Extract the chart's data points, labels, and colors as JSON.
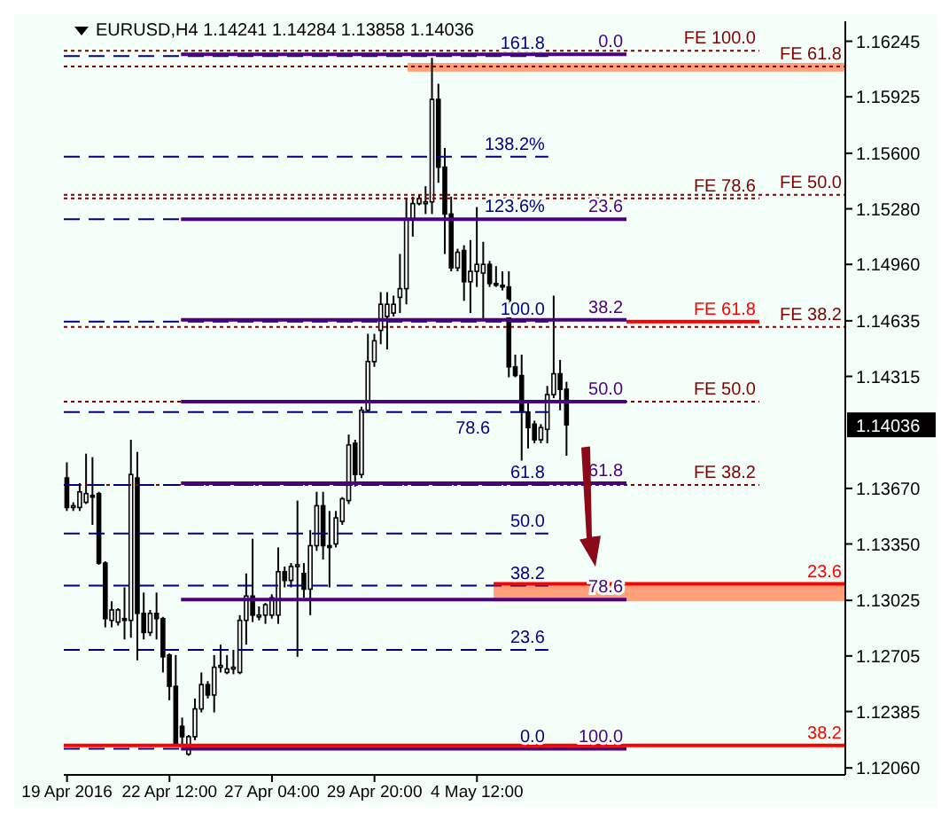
{
  "chart_data": {
    "type": "candlestick",
    "title": "EURUSD,H4  1.14241 1.14284 1.13858 1.14036",
    "categories": [
      "19 Apr 2016",
      null,
      null,
      null,
      null,
      null,
      null,
      null,
      null,
      null,
      null,
      null,
      null,
      null,
      null,
      null,
      "22 Apr 12:00",
      null,
      null,
      null,
      null,
      null,
      null,
      null,
      null,
      null,
      null,
      null,
      null,
      null,
      null,
      null,
      "27 Apr 04:00",
      null,
      null,
      null,
      null,
      null,
      null,
      null,
      null,
      null,
      null,
      null,
      null,
      null,
      null,
      null,
      "29 Apr 20:00",
      null,
      null,
      null,
      null,
      null,
      null,
      null,
      null,
      null,
      null,
      null,
      null,
      null,
      null,
      null,
      "4 May 12:00",
      null,
      null,
      null,
      null,
      null,
      null,
      null,
      null,
      null,
      null,
      null,
      null,
      null,
      null,
      null,
      null,
      null,
      null,
      null,
      null,
      null,
      null,
      null,
      null,
      null,
      null,
      null,
      null,
      null,
      null,
      null,
      null,
      null,
      null,
      null,
      null,
      null,
      null,
      null,
      null,
      null,
      null,
      null,
      null,
      null,
      null,
      null,
      null,
      null,
      null,
      null,
      null,
      null,
      null,
      null,
      null,
      null
    ],
    "ohlc": [
      [
        1.1373,
        1.1382,
        1.1354,
        1.1356
      ],
      [
        1.1356,
        1.1359,
        1.1354,
        1.1357
      ],
      [
        1.1356,
        1.137,
        1.1354,
        1.1365
      ],
      [
        1.1359,
        1.1387,
        1.1358,
        1.1364
      ],
      [
        1.1363,
        1.1385,
        1.1346,
        1.1362
      ],
      [
        1.1364,
        1.1365,
        1.1323,
        1.1324
      ],
      [
        1.1324,
        1.1325,
        1.1287,
        1.1292
      ],
      [
        1.1291,
        1.1302,
        1.1287,
        1.1297
      ],
      [
        1.129,
        1.1298,
        1.1288,
        1.1297
      ],
      [
        1.1292,
        1.131,
        1.128,
        1.1291
      ],
      [
        1.1291,
        1.1395,
        1.1281,
        1.1375
      ],
      [
        1.1373,
        1.1388,
        1.1268,
        1.1295
      ],
      [
        1.1295,
        1.1307,
        1.128,
        1.1284
      ],
      [
        1.1284,
        1.1297,
        1.1282,
        1.1295
      ],
      [
        1.1295,
        1.1307,
        1.128,
        1.1292
      ],
      [
        1.1292,
        1.1293,
        1.1261,
        1.127
      ],
      [
        1.1271,
        1.1272,
        1.1245,
        1.1253
      ],
      [
        1.1253,
        1.1271,
        1.1219,
        1.122
      ],
      [
        1.123,
        1.1235,
        1.1219,
        1.1224
      ],
      [
        1.1214,
        1.1225,
        1.1213,
        1.1224
      ],
      [
        1.1224,
        1.1246,
        1.1222,
        1.124
      ],
      [
        1.124,
        1.1261,
        1.1238,
        1.1254
      ],
      [
        1.1254,
        1.1256,
        1.1246,
        1.1248
      ],
      [
        1.1248,
        1.1271,
        1.1238,
        1.1264
      ],
      [
        1.1264,
        1.1277,
        1.1261,
        1.1265
      ],
      [
        1.1261,
        1.1271,
        1.126,
        1.1263
      ],
      [
        1.1263,
        1.1274,
        1.126,
        1.1264
      ],
      [
        1.1261,
        1.1294,
        1.126,
        1.1291
      ],
      [
        1.1291,
        1.1318,
        1.1277,
        1.1305
      ],
      [
        1.1305,
        1.1338,
        1.129,
        1.1294
      ],
      [
        1.1294,
        1.1299,
        1.1291,
        1.1294
      ],
      [
        1.1294,
        1.1301,
        1.1289,
        1.13
      ],
      [
        1.1294,
        1.1306,
        1.1292,
        1.1304
      ],
      [
        1.1294,
        1.1333,
        1.1289,
        1.1319
      ],
      [
        1.1319,
        1.1322,
        1.131,
        1.1314
      ],
      [
        1.1314,
        1.1324,
        1.131,
        1.1322
      ],
      [
        1.1322,
        1.136,
        1.127,
        1.1323
      ],
      [
        1.1318,
        1.1324,
        1.1304,
        1.1309
      ],
      [
        1.1309,
        1.1343,
        1.1294,
        1.1334
      ],
      [
        1.1334,
        1.1365,
        1.1331,
        1.1357
      ],
      [
        1.1357,
        1.1365,
        1.1326,
        1.1334
      ],
      [
        1.1334,
        1.1354,
        1.131,
        1.1333
      ],
      [
        1.1335,
        1.1354,
        1.1333,
        1.135
      ],
      [
        1.1348,
        1.1362,
        1.1346,
        1.1361
      ],
      [
        1.136,
        1.1398,
        1.1358,
        1.1392
      ],
      [
        1.1393,
        1.1395,
        1.1368,
        1.1375
      ],
      [
        1.1375,
        1.1414,
        1.1373,
        1.1412
      ],
      [
        1.1412,
        1.1456,
        1.1411,
        1.144
      ],
      [
        1.144,
        1.1456,
        1.1437,
        1.1452
      ],
      [
        1.1458,
        1.148,
        1.145,
        1.1473
      ],
      [
        1.1466,
        1.148,
        1.1447,
        1.1473
      ],
      [
        1.1468,
        1.1478,
        1.1466,
        1.1473
      ],
      [
        1.1477,
        1.1502,
        1.1468,
        1.1482
      ],
      [
        1.1482,
        1.1534,
        1.1473,
        1.1522
      ],
      [
        1.1522,
        1.1535,
        1.1512,
        1.1531
      ],
      [
        1.1531,
        1.1536,
        1.153,
        1.1534
      ],
      [
        1.1532,
        1.1541,
        1.1525,
        1.1532
      ],
      [
        1.1532,
        1.1615,
        1.1525,
        1.1591
      ],
      [
        1.1591,
        1.16,
        1.1543,
        1.1552
      ],
      [
        1.1552,
        1.1563,
        1.1502,
        1.1525
      ],
      [
        1.1525,
        1.1535,
        1.1492,
        1.1494
      ],
      [
        1.1494,
        1.1505,
        1.1492,
        1.1503
      ],
      [
        1.1504,
        1.1507,
        1.1475,
        1.1486
      ],
      [
        1.1486,
        1.151,
        1.1468,
        1.1492
      ],
      [
        1.1492,
        1.1529,
        1.1483,
        1.1496
      ],
      [
        1.1491,
        1.1509,
        1.1465,
        1.1496
      ],
      [
        1.1496,
        1.1498,
        1.1483,
        1.1485
      ],
      [
        1.1485,
        1.1495,
        1.1483,
        1.1484
      ],
      [
        1.1484,
        1.1492,
        1.1481,
        1.1483
      ],
      [
        1.1483,
        1.1492,
        1.1431,
        1.1437
      ],
      [
        1.1437,
        1.1444,
        1.1431,
        1.1432
      ],
      [
        1.1432,
        1.1444,
        1.1383,
        1.1411
      ],
      [
        1.1411,
        1.1417,
        1.139,
        1.1402
      ],
      [
        1.1404,
        1.1406,
        1.1393,
        1.1395
      ],
      [
        1.1395,
        1.1404,
        1.1393,
        1.1402
      ],
      [
        1.1401,
        1.1426,
        1.1393,
        1.1421
      ],
      [
        1.1421,
        1.1478,
        1.1419,
        1.1433
      ],
      [
        1.1433,
        1.1441,
        1.1412,
        1.1424
      ],
      [
        1.14241,
        1.14284,
        1.13858,
        1.14036
      ],
      null,
      null,
      null,
      null,
      null,
      null,
      null,
      null,
      null,
      null,
      null,
      null,
      null,
      null,
      null,
      null,
      null,
      null,
      null,
      null,
      null,
      null,
      null,
      null,
      null,
      null,
      null,
      null,
      null,
      null,
      null,
      null,
      null,
      null,
      null,
      null,
      null,
      null,
      null,
      null,
      null,
      null,
      null
    ],
    "ylim": [
      1.1202,
      1.1636
    ],
    "yticks": [
      {
        "value": 1.16245,
        "label": "1.16245"
      },
      {
        "value": 1.15925,
        "label": "1.15925"
      },
      {
        "value": 1.156,
        "label": "1.15600"
      },
      {
        "value": 1.1528,
        "label": "1.15280"
      },
      {
        "value": 1.1496,
        "label": "1.14960"
      },
      {
        "value": 1.14635,
        "label": "1.14635"
      },
      {
        "value": 1.14315,
        "label": "1.14315"
      },
      {
        "value": 1.1367,
        "label": "1.13670"
      },
      {
        "value": 1.1335,
        "label": "1.13350"
      },
      {
        "value": 1.13025,
        "label": "1.13025"
      },
      {
        "value": 1.12705,
        "label": "1.12705"
      },
      {
        "value": 1.12385,
        "label": "1.12385"
      },
      {
        "value": 1.1206,
        "label": "1.12060"
      }
    ],
    "ref_lines": [
      {
        "axis": "y",
        "value": 1.1617,
        "color": "#4b0082",
        "line_style": "solid"
      },
      {
        "axis": "y",
        "value": 1.1522,
        "color": "#4b0082",
        "line_style": "solid"
      },
      {
        "axis": "y",
        "value": 1.1464,
        "color": "#4b0082",
        "line_style": "solid"
      },
      {
        "axis": "y",
        "value": 1.1417,
        "color": "#4b0082",
        "line_style": "solid"
      },
      {
        "axis": "y",
        "value": 1.137,
        "color": "#4b0082",
        "line_style": "solid"
      },
      {
        "axis": "y",
        "value": 1.1303,
        "color": "#4b0082",
        "line_style": "solid"
      },
      {
        "axis": "y",
        "value": 1.1217,
        "color": "#4b0082",
        "line_style": "solid"
      },
      {
        "axis": "y",
        "value": 1.1217,
        "color": "#000080",
        "line_style": "dashed"
      },
      {
        "axis": "y",
        "value": 1.1274,
        "color": "#000080",
        "line_style": "dashed"
      },
      {
        "axis": "y",
        "value": 1.1311,
        "color": "#000080",
        "line_style": "dashed"
      },
      {
        "axis": "y",
        "value": 1.1341,
        "color": "#000080",
        "line_style": "dashed"
      },
      {
        "axis": "y",
        "value": 1.1369,
        "color": "#000080",
        "line_style": "dashed"
      },
      {
        "axis": "y",
        "value": 1.1411,
        "color": "#000080",
        "line_style": "dashed"
      },
      {
        "axis": "y",
        "value": 1.1463,
        "color": "#000080",
        "line_style": "dashed"
      },
      {
        "axis": "y",
        "value": 1.1522,
        "color": "#000080",
        "line_style": "dashed"
      },
      {
        "axis": "y",
        "value": 1.1558,
        "color": "#000080",
        "line_style": "dashed"
      },
      {
        "axis": "y",
        "value": 1.1616,
        "color": "#000080",
        "line_style": "dashed"
      },
      {
        "axis": "y",
        "value": 1.1619,
        "label": "FE 100.0",
        "color": "#800000",
        "line_style": "dotted"
      },
      {
        "axis": "y",
        "value": 1.1534,
        "label": "FE 78.6",
        "color": "#800000",
        "line_style": "dotted"
      },
      {
        "axis": "y",
        "value": 1.1463,
        "label": "FE 61.8",
        "color": "#ff0000",
        "line_style": "solid"
      },
      {
        "axis": "y",
        "value": 1.1417,
        "label": "FE 50.0",
        "color": "#800000",
        "line_style": "dotted"
      },
      {
        "axis": "y",
        "value": 1.1369,
        "label": "FE 38.2",
        "color": "#800000",
        "line_style": "dotted"
      },
      {
        "axis": "y",
        "value": 1.161,
        "label": "FE 61.8",
        "color": "#800000",
        "line_style": "dotted"
      },
      {
        "axis": "y",
        "value": 1.1536,
        "label": "FE 50.0",
        "color": "#800000",
        "line_style": "dotted"
      },
      {
        "axis": "y",
        "value": 1.146,
        "label": "FE 38.2",
        "color": "#800000",
        "line_style": "dotted"
      },
      {
        "axis": "y",
        "value": 1.1312,
        "color": "#ff0000",
        "line_style": "solid"
      },
      {
        "axis": "y",
        "value": 1.1219,
        "color": "#ff0000",
        "line_style": "solid"
      }
    ],
    "bands": [
      {
        "axis": "y",
        "from": 1.1607,
        "to": 1.1612,
        "color": "#ffa07a"
      },
      {
        "axis": "y",
        "from": 1.1302,
        "to": 1.1312,
        "color": "#ffa07a"
      }
    ],
    "annotations": [
      "1.14036",
      {
        "text": "0.0",
        "y": 1.1617
      },
      {
        "text": "23.6",
        "y": 1.1522
      },
      {
        "text": "38.2",
        "y": 1.1464
      },
      {
        "text": "50.0",
        "y": 1.1417
      },
      {
        "text": "61.8",
        "y": 1.137
      },
      {
        "text": "78.6",
        "y": 1.1303
      },
      {
        "text": "100.0",
        "y": 1.1217
      },
      {
        "text": "0.0",
        "y": 1.1217
      },
      {
        "text": "23.6",
        "y": 1.1274
      },
      {
        "text": "38.2",
        "y": 1.1311
      },
      {
        "text": "50.0",
        "y": 1.1341
      },
      {
        "text": "61.8",
        "y": 1.1369
      },
      {
        "text": "78.6",
        "y": 1.1411
      },
      {
        "text": "100.0",
        "y": 1.1463
      },
      {
        "text": "123.6%",
        "y": 1.1522
      },
      {
        "text": "138.2%",
        "y": 1.1558
      },
      {
        "text": "161.8",
        "y": 1.1616
      },
      {
        "text": "23.6",
        "y": 1.1312
      },
      {
        "text": "38.2",
        "y": 1.1219
      }
    ]
  }
}
